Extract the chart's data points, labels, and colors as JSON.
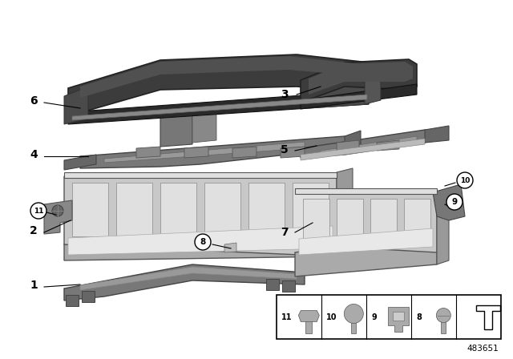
{
  "bg_color": "#ffffff",
  "part_number": "483651",
  "dark_part": "#3c3c3c",
  "dark_part2": "#2a2a2a",
  "mid_gray": "#787878",
  "light_gray": "#c8c8c8",
  "lighter_gray": "#e0e0e0",
  "edge_color": "#555555",
  "white_part": "#f0f0f0",
  "highlight": "#505050"
}
